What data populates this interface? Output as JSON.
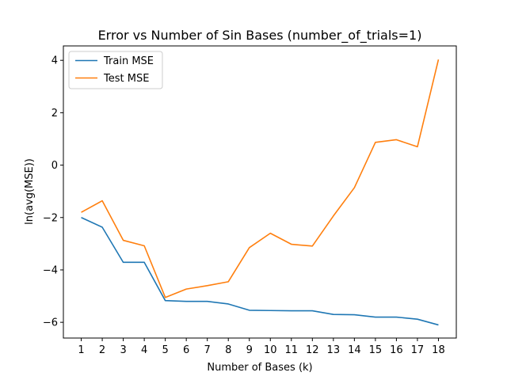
{
  "chart_data": {
    "type": "line",
    "title": "Error vs Number of Sin Bases (number_of_trials=1)",
    "xlabel": "Number of Bases (k)",
    "ylabel": "ln(avg(MSE))",
    "x": [
      1,
      2,
      3,
      4,
      5,
      6,
      7,
      8,
      9,
      10,
      11,
      12,
      13,
      14,
      15,
      16,
      17,
      18
    ],
    "xlim": [
      0.15,
      18.85
    ],
    "ylim": [
      -6.6,
      4.55
    ],
    "xticks": [
      "1",
      "2",
      "3",
      "4",
      "5",
      "6",
      "7",
      "8",
      "9",
      "10",
      "11",
      "12",
      "13",
      "14",
      "15",
      "16",
      "17",
      "18"
    ],
    "yticks": [
      {
        "value": -6,
        "label": "−6"
      },
      {
        "value": -4,
        "label": "−4"
      },
      {
        "value": -2,
        "label": "−2"
      },
      {
        "value": 0,
        "label": "0"
      },
      {
        "value": 2,
        "label": "2"
      },
      {
        "value": 4,
        "label": "4"
      }
    ],
    "grid": false,
    "legend_position": "top-left",
    "series": [
      {
        "name": "Train MSE",
        "color": "#1f77b4",
        "values": [
          -2.0,
          -2.37,
          -3.71,
          -3.71,
          -5.17,
          -5.2,
          -5.2,
          -5.3,
          -5.54,
          -5.55,
          -5.56,
          -5.56,
          -5.7,
          -5.71,
          -5.8,
          -5.8,
          -5.88,
          -6.1
        ]
      },
      {
        "name": "Test MSE",
        "color": "#ff7f0e",
        "values": [
          -1.8,
          -1.36,
          -2.87,
          -3.08,
          -5.05,
          -4.73,
          -4.6,
          -4.45,
          -3.15,
          -2.6,
          -3.02,
          -3.09,
          -1.94,
          -0.86,
          0.87,
          0.97,
          0.7,
          4.03
        ]
      }
    ]
  }
}
